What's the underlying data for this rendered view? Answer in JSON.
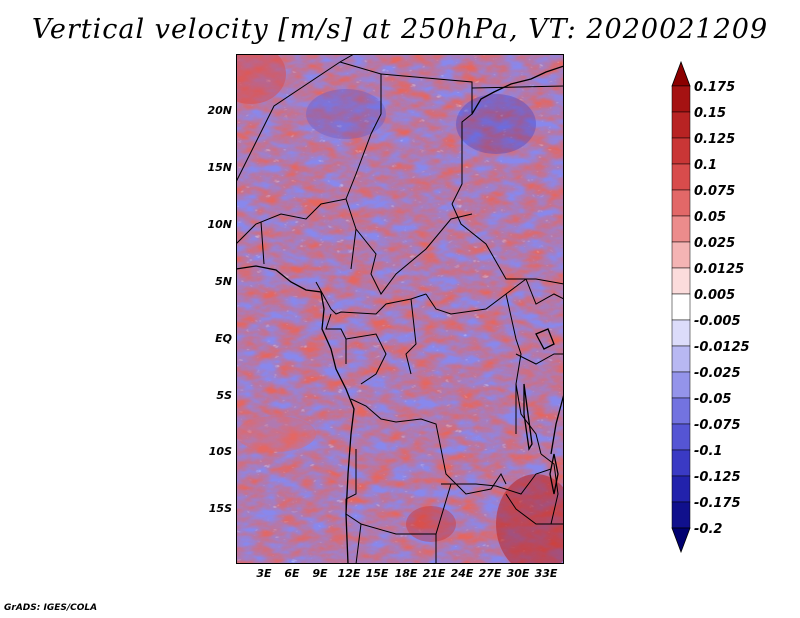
{
  "title": "Vertical velocity [m/s] at 250hPa, VT: 2020021209",
  "map": {
    "lat_labels": [
      "20N",
      "15N",
      "10N",
      "5N",
      "EQ",
      "5S",
      "10S",
      "15S"
    ],
    "lon_labels": [
      "3E",
      "6E",
      "9E",
      "12E",
      "15E",
      "18E",
      "21E",
      "24E",
      "27E",
      "30E",
      "33E"
    ]
  },
  "colorbar": {
    "labels": [
      "0.175",
      "0.15",
      "0.125",
      "0.1",
      "0.075",
      "0.05",
      "0.025",
      "0.0125",
      "0.005",
      "-0.005",
      "-0.0125",
      "-0.025",
      "-0.05",
      "-0.075",
      "-0.1",
      "-0.125",
      "-0.175",
      "-0.2"
    ],
    "colors": [
      "#8b0000",
      "#a51212",
      "#b82323",
      "#c93636",
      "#d84c4c",
      "#e26868",
      "#ec8c8c",
      "#f4b4b4",
      "#fbdcdc",
      "#ffffff",
      "#dcdcfa",
      "#b8b8f2",
      "#9494ea",
      "#7373e0",
      "#5555d4",
      "#3a3ac4",
      "#2222ac",
      "#10108c",
      "#000070"
    ]
  },
  "credit": "GrADS: IGES/COLA"
}
